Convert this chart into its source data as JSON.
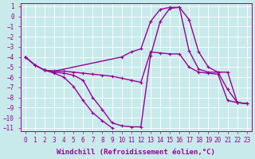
{
  "xlabel": "Windchill (Refroidissement éolien,°C)",
  "ylabel": "",
  "bg_color": "#c8eaea",
  "grid_color": "#ffffff",
  "line_color": "#990099",
  "xlim": [
    -0.5,
    23.5
  ],
  "ylim": [
    -11.3,
    1.3
  ],
  "xticks": [
    0,
    1,
    2,
    3,
    4,
    5,
    6,
    7,
    8,
    9,
    10,
    11,
    12,
    13,
    14,
    15,
    16,
    17,
    18,
    19,
    20,
    21,
    22,
    23
  ],
  "yticks": [
    1,
    0,
    -1,
    -2,
    -3,
    -4,
    -5,
    -6,
    -7,
    -8,
    -9,
    -10,
    -11
  ],
  "line1_x": [
    0,
    1,
    2,
    3,
    4,
    5,
    6,
    7,
    8,
    9,
    10,
    11,
    12,
    13,
    14,
    15,
    16,
    17,
    18,
    19,
    20,
    21,
    22,
    23
  ],
  "line1_y": [
    -4.0,
    -4.8,
    -5.3,
    -5.4,
    -5.4,
    -5.5,
    -5.6,
    -5.7,
    -5.8,
    -5.9,
    -6.1,
    -6.3,
    -6.5,
    -3.5,
    -3.6,
    -3.7,
    -3.7,
    -5.0,
    -5.5,
    -5.6,
    -5.7,
    -8.3,
    -8.5,
    -8.6
  ],
  "line2_x": [
    0,
    1,
    2,
    3,
    10,
    11,
    12,
    13,
    14,
    15,
    16,
    17,
    18,
    19,
    20,
    21,
    22,
    23
  ],
  "line2_y": [
    -4.0,
    -4.8,
    -5.3,
    -5.4,
    -4.0,
    -3.5,
    -3.2,
    -0.5,
    0.7,
    0.9,
    0.9,
    -0.3,
    -3.5,
    -5.0,
    -5.5,
    -5.5,
    -8.5,
    -8.6
  ],
  "line3_x": [
    0,
    1,
    2,
    3,
    4,
    5,
    6,
    7,
    8,
    9,
    10,
    11,
    12,
    13,
    14,
    15,
    16,
    17,
    18,
    19,
    20,
    21,
    22,
    23
  ],
  "line3_y": [
    -4.0,
    -4.8,
    -5.3,
    -5.5,
    -5.6,
    -5.8,
    -6.3,
    -8.0,
    -9.2,
    -10.5,
    -10.8,
    -10.9,
    -10.9,
    -3.9,
    -0.5,
    0.8,
    0.9,
    -3.4,
    -5.2,
    -5.5,
    -5.5,
    -7.2,
    -8.5,
    -8.6
  ],
  "line4_x": [
    2,
    3,
    4,
    5,
    6,
    7,
    8,
    9
  ],
  "line4_y": [
    -5.3,
    -5.6,
    -6.0,
    -6.9,
    -8.3,
    -9.5,
    -10.3,
    -11.0
  ],
  "marker": "+",
  "markersize": 3.5,
  "linewidth": 1.0,
  "fontsize_tick": 5.5,
  "fontsize_label": 6.5
}
